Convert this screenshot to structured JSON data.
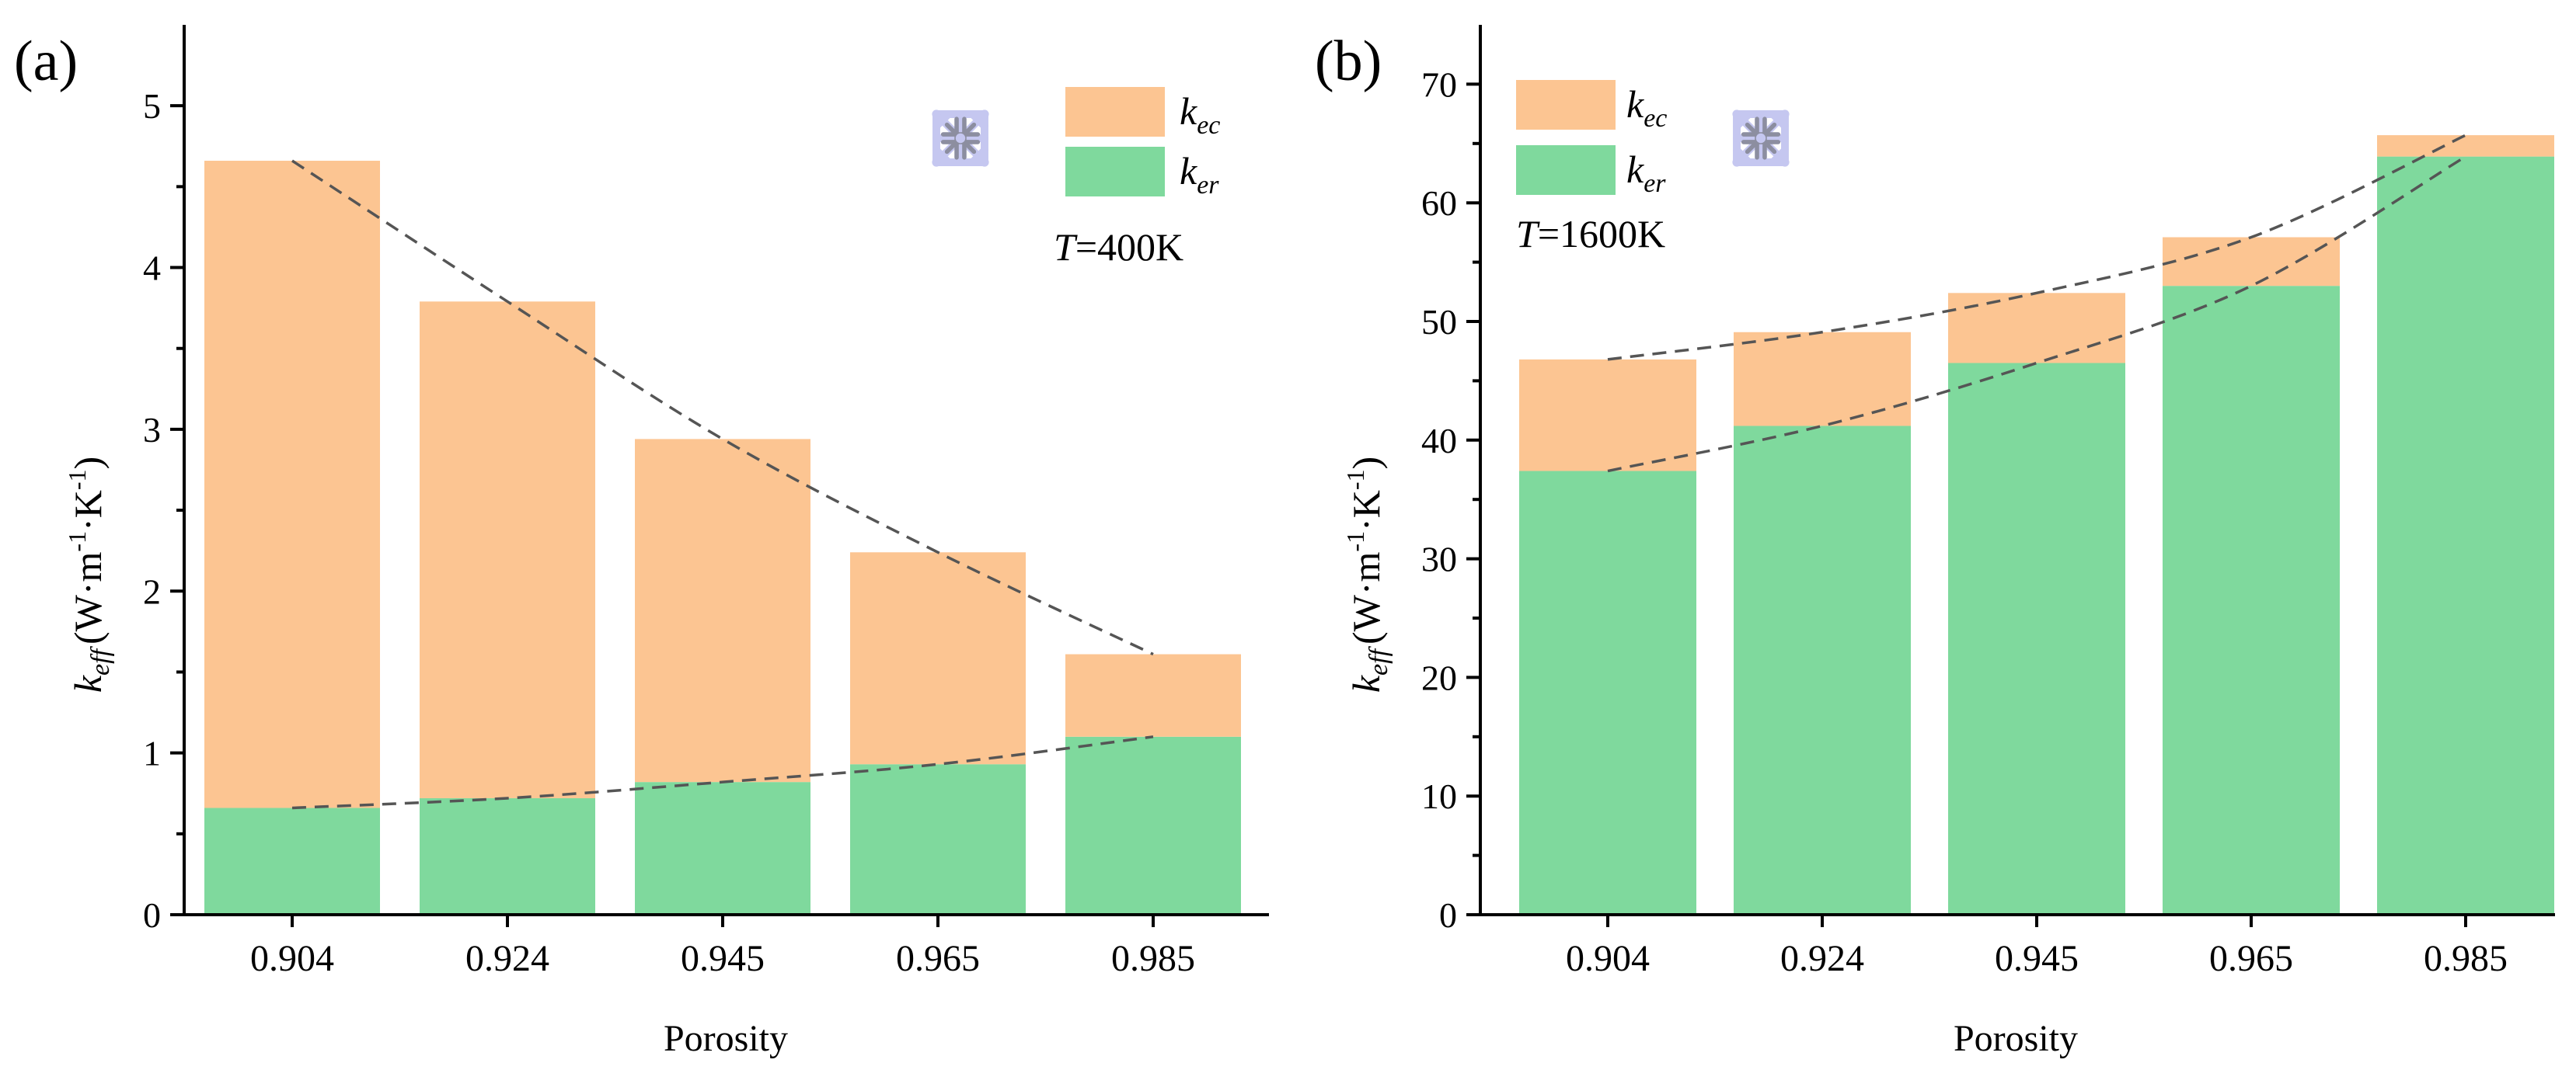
{
  "colors": {
    "k_ec": "#fcc592",
    "k_er": "#7fd99d",
    "trend": "#555555",
    "axis": "#000000",
    "inset_light": "#c5c7f0",
    "inset_dark": "#8c8ea0"
  },
  "inset_icon": "porous-lattice-structure-icon",
  "chart_data": [
    {
      "panel": "(a)",
      "type": "bar",
      "stacked": true,
      "xlabel": "Porosity",
      "ylabel_main": "k",
      "ylabel_sub": "eff",
      "ylabel_unit": "(W·m",
      "ylabel_exp1": "-1",
      "ylabel_mid": "·K",
      "ylabel_exp2": "-1",
      "ylabel_close": ")",
      "categories": [
        "0.904",
        "0.924",
        "0.945",
        "0.965",
        "0.985"
      ],
      "ylim": [
        0,
        5.5
      ],
      "yticks": [
        0,
        1,
        2,
        3,
        4,
        5
      ],
      "series": [
        {
          "name": "k_ec",
          "label_main": "k",
          "label_sub": "ec",
          "values": [
            4.0,
            3.07,
            2.12,
            1.31,
            0.51
          ]
        },
        {
          "name": "k_er",
          "label_main": "k",
          "label_sub": "er",
          "values": [
            0.66,
            0.72,
            0.82,
            0.93,
            1.1
          ]
        }
      ],
      "totals": [
        4.66,
        3.79,
        2.94,
        2.24,
        1.61
      ],
      "legend_position": "top-right",
      "annotation": {
        "italic": "T",
        "text": "=400K"
      },
      "trend_lines": [
        "totals",
        "k_er"
      ]
    },
    {
      "panel": "(b)",
      "type": "bar",
      "stacked": true,
      "xlabel": "Porosity",
      "ylabel_main": "k",
      "ylabel_sub": "eff",
      "ylabel_unit": "(W·m",
      "ylabel_exp1": "-1",
      "ylabel_mid": "·K",
      "ylabel_exp2": "-1",
      "ylabel_close": ")",
      "categories": [
        "0.904",
        "0.924",
        "0.945",
        "0.965",
        "0.985"
      ],
      "ylim": [
        0,
        75
      ],
      "yticks": [
        0,
        10,
        20,
        30,
        40,
        50,
        60,
        70
      ],
      "series": [
        {
          "name": "k_ec",
          "label_main": "k",
          "label_sub": "ec",
          "values": [
            9.4,
            7.9,
            5.9,
            4.1,
            1.8
          ]
        },
        {
          "name": "k_er",
          "label_main": "k",
          "label_sub": "er",
          "values": [
            37.4,
            41.2,
            46.5,
            53.0,
            63.9
          ]
        }
      ],
      "totals": [
        46.8,
        49.1,
        52.4,
        57.1,
        65.7
      ],
      "legend_position": "top-left",
      "annotation": {
        "italic": "T",
        "text": "=1600K"
      },
      "trend_lines": [
        "totals",
        "k_er"
      ]
    }
  ]
}
